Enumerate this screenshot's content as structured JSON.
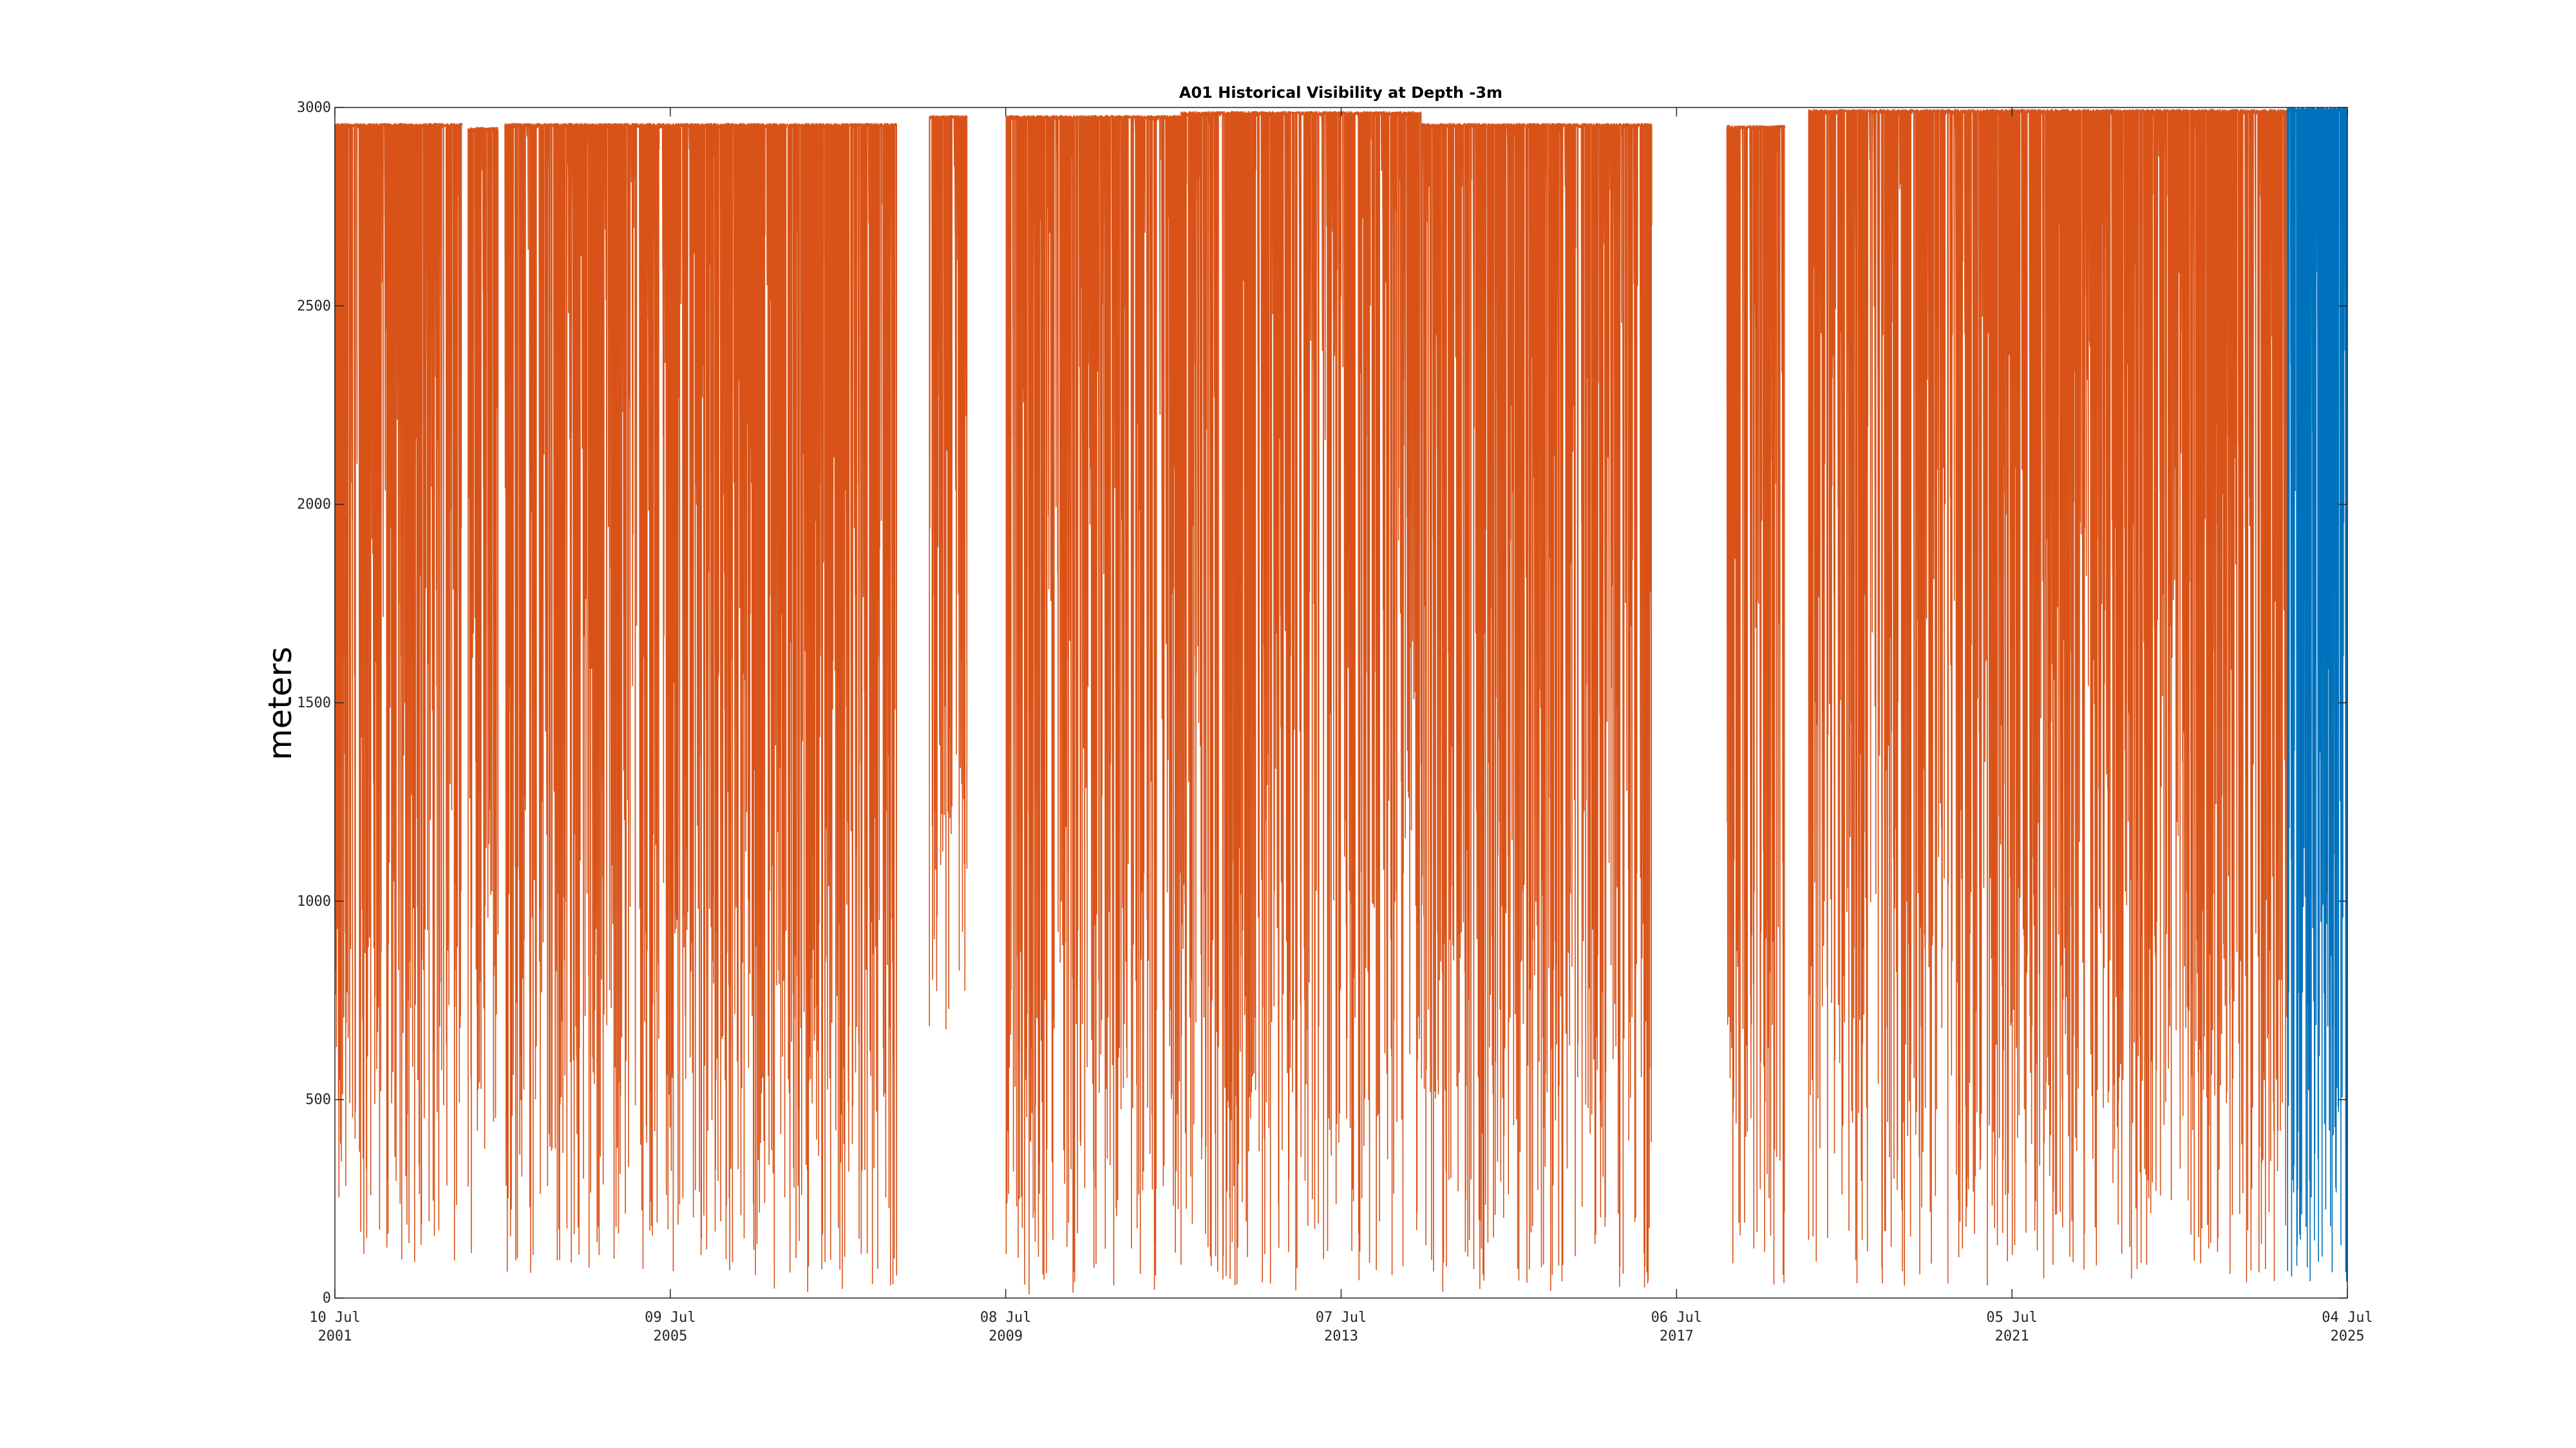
{
  "chart_data": {
    "type": "line",
    "title": "A01 Historical Visibility at Depth -3m",
    "xlabel": "",
    "ylabel": "meters",
    "ylim": [
      0,
      3000
    ],
    "xlim": [
      "2001-07-10",
      "2025-07-04"
    ],
    "grid": false,
    "yticks": [
      0,
      500,
      1000,
      1500,
      2000,
      2500,
      3000
    ],
    "xticks": [
      {
        "date": "2001-07-10",
        "line1": "10 Jul",
        "line2": "2001"
      },
      {
        "date": "2005-07-09",
        "line1": "09 Jul",
        "line2": "2005"
      },
      {
        "date": "2009-07-08",
        "line1": "08 Jul",
        "line2": "2009"
      },
      {
        "date": "2013-07-07",
        "line1": "07 Jul",
        "line2": "2013"
      },
      {
        "date": "2017-07-06",
        "line1": "06 Jul",
        "line2": "2017"
      },
      {
        "date": "2021-07-05",
        "line1": "05 Jul",
        "line2": "2021"
      },
      {
        "date": "2025-07-04",
        "line1": "04 Jul",
        "line2": "2025"
      }
    ],
    "series": [
      {
        "color": "#D95319",
        "segments": [
          {
            "start": "2001-07-10",
            "end": "2003-01-15",
            "max": 2960,
            "min": 80
          },
          {
            "start": "2003-02-10",
            "end": "2003-06-20",
            "max": 2950,
            "min": 90
          },
          {
            "start": "2003-07-20",
            "end": "2006-06-20",
            "max": 2960,
            "min": 60
          },
          {
            "start": "2006-06-20",
            "end": "2008-03-20",
            "max": 2960,
            "min": 10
          },
          {
            "start": "2008-08-10",
            "end": "2009-01-20",
            "max": 2980,
            "min": 620
          },
          {
            "start": "2009-07-10",
            "end": "2011-08-10",
            "max": 2980,
            "min": 5
          },
          {
            "start": "2011-08-10",
            "end": "2014-06-20",
            "max": 2990,
            "min": 20
          },
          {
            "start": "2014-06-20",
            "end": "2017-03-20",
            "max": 2960,
            "min": 15
          },
          {
            "start": "2018-02-10",
            "end": "2018-10-20",
            "max": 2955,
            "min": 20
          },
          {
            "start": "2019-02-01",
            "end": "2021-05-01",
            "max": 2995,
            "min": 30
          },
          {
            "start": "2021-05-01",
            "end": "2024-10-15",
            "max": 2995,
            "min": 40
          }
        ]
      },
      {
        "color": "#0072BD",
        "segments": [
          {
            "start": "2024-10-15",
            "end": "2025-07-04",
            "max": 3000,
            "min": 20
          }
        ]
      }
    ]
  }
}
